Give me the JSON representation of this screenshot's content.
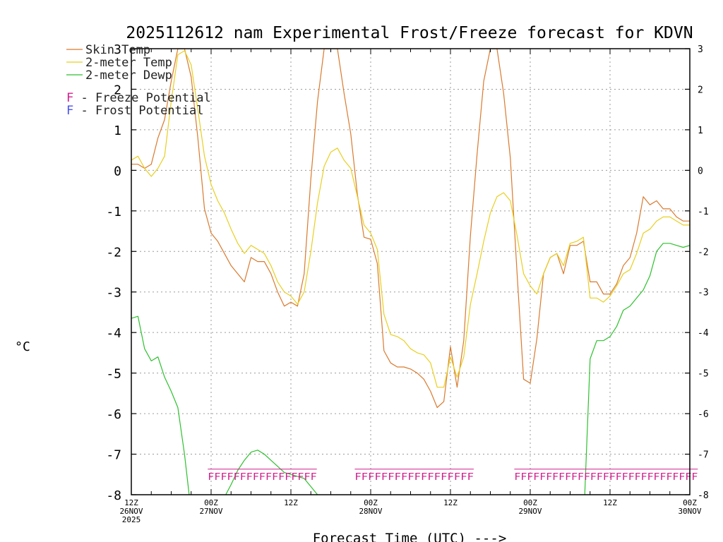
{
  "chart_data": {
    "type": "line",
    "title": "2025112612 nam Experimental Frost/Freeze forecast for KDVN",
    "xlabel": "Forecast Time (UTC) --->",
    "ylabel": "°C",
    "ylim": [
      -8,
      3
    ],
    "xlim": [
      0,
      84
    ],
    "y_ticks": [
      "-8",
      "-7",
      "-6",
      "-5",
      "-4",
      "-3",
      "-2",
      "-1",
      "0",
      "1",
      "2",
      "3"
    ],
    "x_ticks": [
      {
        "h": 0,
        "lines": [
          "12Z",
          "26NOV",
          "2025"
        ]
      },
      {
        "h": 12,
        "lines": [
          "00Z",
          "27NOV"
        ]
      },
      {
        "h": 24,
        "lines": [
          "12Z"
        ]
      },
      {
        "h": 36,
        "lines": [
          "00Z",
          "28NOV"
        ]
      },
      {
        "h": 48,
        "lines": [
          "12Z"
        ]
      },
      {
        "h": 60,
        "lines": [
          "00Z",
          "29NOV"
        ]
      },
      {
        "h": 72,
        "lines": [
          "12Z"
        ]
      },
      {
        "h": 84,
        "lines": [
          "00Z",
          "30NOV"
        ]
      }
    ],
    "grid": true,
    "legend": [
      {
        "label": "Skin Temp",
        "color": "#d97a2e"
      },
      {
        "label": "2-meter Temp",
        "color": "#e8cf1e"
      },
      {
        "label": "2-meter Dewp",
        "color": "#2ec02e"
      }
    ],
    "annotations": [
      {
        "letter": "F",
        "text": " - Freeze Potential",
        "color": "#d01e8c"
      },
      {
        "letter": "F",
        "text": " - Frost Potential",
        "color": "#4a52e8"
      }
    ],
    "series": [
      {
        "name": "Skin Temp",
        "color": "#d97a2e",
        "points": [
          [
            0,
            0.15
          ],
          [
            1,
            0.15
          ],
          [
            2,
            0.05
          ],
          [
            3,
            0.15
          ],
          [
            4,
            0.8
          ],
          [
            5,
            1.25
          ],
          [
            6,
            2.2
          ],
          [
            7,
            3.0
          ],
          [
            8,
            3.0
          ],
          [
            9,
            2.3
          ],
          [
            10,
            0.8
          ],
          [
            11,
            -0.95
          ],
          [
            12,
            -1.55
          ],
          [
            13,
            -1.75
          ],
          [
            14,
            -2.05
          ],
          [
            15,
            -2.35
          ],
          [
            16,
            -2.55
          ],
          [
            17,
            -2.75
          ],
          [
            18,
            -2.15
          ],
          [
            19,
            -2.25
          ],
          [
            20,
            -2.25
          ],
          [
            21,
            -2.55
          ],
          [
            22,
            -3.0
          ],
          [
            23,
            -3.35
          ],
          [
            24,
            -3.25
          ],
          [
            25,
            -3.35
          ],
          [
            26,
            -2.55
          ],
          [
            27,
            -0.2
          ],
          [
            28,
            1.7
          ],
          [
            29,
            3.0
          ],
          [
            30,
            3.0
          ],
          [
            31,
            3.0
          ],
          [
            32,
            1.9
          ],
          [
            33,
            0.9
          ],
          [
            34,
            -0.6
          ],
          [
            35,
            -1.65
          ],
          [
            36,
            -1.7
          ],
          [
            37,
            -2.3
          ],
          [
            38,
            -4.45
          ],
          [
            39,
            -4.75
          ],
          [
            40,
            -4.85
          ],
          [
            41,
            -4.85
          ],
          [
            42,
            -4.9
          ],
          [
            43,
            -5.0
          ],
          [
            44,
            -5.15
          ],
          [
            45,
            -5.45
          ],
          [
            46,
            -5.85
          ],
          [
            47,
            -5.7
          ],
          [
            48,
            -4.35
          ],
          [
            49,
            -5.35
          ],
          [
            50,
            -4.2
          ],
          [
            51,
            -1.6
          ],
          [
            52,
            0.4
          ],
          [
            53,
            2.2
          ],
          [
            54,
            3.0
          ],
          [
            55,
            3.0
          ],
          [
            56,
            1.9
          ],
          [
            57,
            0.3
          ],
          [
            58,
            -2.5
          ],
          [
            59,
            -5.15
          ],
          [
            60,
            -5.25
          ],
          [
            61,
            -4.15
          ],
          [
            62,
            -2.55
          ],
          [
            63,
            -2.15
          ],
          [
            64,
            -2.05
          ],
          [
            65,
            -2.55
          ],
          [
            66,
            -1.85
          ],
          [
            67,
            -1.85
          ],
          [
            68,
            -1.75
          ],
          [
            69,
            -2.75
          ],
          [
            70,
            -2.75
          ],
          [
            71,
            -3.05
          ],
          [
            72,
            -3.05
          ],
          [
            73,
            -2.8
          ],
          [
            74,
            -2.35
          ],
          [
            75,
            -2.15
          ],
          [
            76,
            -1.55
          ],
          [
            77,
            -0.65
          ],
          [
            78,
            -0.85
          ],
          [
            79,
            -0.75
          ],
          [
            80,
            -0.95
          ],
          [
            81,
            -0.95
          ],
          [
            82,
            -1.15
          ],
          [
            83,
            -1.25
          ],
          [
            84,
            -1.25
          ]
        ]
      },
      {
        "name": "2-meter Temp",
        "color": "#e8cf1e",
        "points": [
          [
            0,
            0.25
          ],
          [
            1,
            0.35
          ],
          [
            2,
            0.05
          ],
          [
            3,
            -0.15
          ],
          [
            4,
            0.05
          ],
          [
            5,
            0.35
          ],
          [
            6,
            1.7
          ],
          [
            7,
            2.85
          ],
          [
            8,
            2.95
          ],
          [
            9,
            2.6
          ],
          [
            10,
            1.5
          ],
          [
            11,
            0.35
          ],
          [
            12,
            -0.35
          ],
          [
            13,
            -0.75
          ],
          [
            14,
            -1.05
          ],
          [
            15,
            -1.45
          ],
          [
            16,
            -1.8
          ],
          [
            17,
            -2.05
          ],
          [
            18,
            -1.85
          ],
          [
            19,
            -1.95
          ],
          [
            20,
            -2.05
          ],
          [
            21,
            -2.35
          ],
          [
            22,
            -2.75
          ],
          [
            23,
            -3.0
          ],
          [
            24,
            -3.1
          ],
          [
            25,
            -3.3
          ],
          [
            26,
            -3.0
          ],
          [
            27,
            -2.0
          ],
          [
            28,
            -0.8
          ],
          [
            29,
            0.1
          ],
          [
            30,
            0.45
          ],
          [
            31,
            0.55
          ],
          [
            32,
            0.25
          ],
          [
            33,
            0.05
          ],
          [
            34,
            -0.65
          ],
          [
            35,
            -1.35
          ],
          [
            36,
            -1.55
          ],
          [
            37,
            -1.95
          ],
          [
            38,
            -3.55
          ],
          [
            39,
            -4.05
          ],
          [
            40,
            -4.1
          ],
          [
            41,
            -4.2
          ],
          [
            42,
            -4.4
          ],
          [
            43,
            -4.5
          ],
          [
            44,
            -4.55
          ],
          [
            45,
            -4.75
          ],
          [
            46,
            -5.35
          ],
          [
            47,
            -5.35
          ],
          [
            48,
            -4.6
          ],
          [
            49,
            -5.1
          ],
          [
            50,
            -4.6
          ],
          [
            51,
            -3.3
          ],
          [
            52,
            -2.55
          ],
          [
            53,
            -1.75
          ],
          [
            54,
            -1.05
          ],
          [
            55,
            -0.65
          ],
          [
            56,
            -0.55
          ],
          [
            57,
            -0.75
          ],
          [
            58,
            -1.6
          ],
          [
            59,
            -2.55
          ],
          [
            60,
            -2.85
          ],
          [
            61,
            -3.05
          ],
          [
            62,
            -2.55
          ],
          [
            63,
            -2.15
          ],
          [
            64,
            -2.05
          ],
          [
            65,
            -2.35
          ],
          [
            66,
            -1.8
          ],
          [
            67,
            -1.75
          ],
          [
            68,
            -1.65
          ],
          [
            69,
            -3.15
          ],
          [
            70,
            -3.15
          ],
          [
            71,
            -3.25
          ],
          [
            72,
            -3.1
          ],
          [
            73,
            -2.85
          ],
          [
            74,
            -2.55
          ],
          [
            75,
            -2.45
          ],
          [
            76,
            -2.05
          ],
          [
            77,
            -1.55
          ],
          [
            78,
            -1.45
          ],
          [
            79,
            -1.25
          ],
          [
            80,
            -1.15
          ],
          [
            81,
            -1.15
          ],
          [
            82,
            -1.25
          ],
          [
            83,
            -1.35
          ],
          [
            84,
            -1.35
          ]
        ]
      },
      {
        "name": "2-meter Dewp",
        "color": "#2ec02e",
        "points": [
          [
            0,
            -3.65
          ],
          [
            1,
            -3.6
          ],
          [
            2,
            -4.4
          ],
          [
            3,
            -4.7
          ],
          [
            4,
            -4.6
          ],
          [
            5,
            -5.1
          ],
          [
            6,
            -5.45
          ],
          [
            7,
            -5.85
          ],
          [
            8,
            -7.0
          ],
          [
            8.7,
            -8.0
          ],
          [
            null,
            null
          ],
          [
            14.2,
            -8.0
          ],
          [
            15,
            -7.75
          ],
          [
            16,
            -7.4
          ],
          [
            17,
            -7.15
          ],
          [
            18,
            -6.95
          ],
          [
            19,
            -6.9
          ],
          [
            20,
            -7.0
          ],
          [
            21,
            -7.15
          ],
          [
            22,
            -7.3
          ],
          [
            23,
            -7.45
          ],
          [
            24,
            -7.5
          ],
          [
            25,
            -7.55
          ],
          [
            26,
            -7.6
          ],
          [
            27,
            -7.8
          ],
          [
            28,
            -8.0
          ],
          [
            null,
            null
          ],
          [
            68.2,
            -8.0
          ],
          [
            69,
            -4.65
          ],
          [
            70,
            -4.2
          ],
          [
            71,
            -4.2
          ],
          [
            72,
            -4.1
          ],
          [
            73,
            -3.85
          ],
          [
            74,
            -3.45
          ],
          [
            75,
            -3.35
          ],
          [
            76,
            -3.15
          ],
          [
            77,
            -2.95
          ],
          [
            78,
            -2.6
          ],
          [
            79,
            -2.0
          ],
          [
            80,
            -1.8
          ],
          [
            81,
            -1.8
          ],
          [
            82,
            -1.85
          ],
          [
            83,
            -1.9
          ],
          [
            84,
            -1.85
          ]
        ]
      }
    ],
    "flag_rows": [
      {
        "text": "FFFFFFFFFFFFFFFFF",
        "start": 11.5,
        "end": 27.9,
        "color": "#d01e8c"
      },
      {
        "text": "FFFFFFFFFFFFFFFFFF",
        "start": 33.6,
        "end": 51.5,
        "color": "#d01e8c"
      },
      {
        "text": "FFFFFFFFFFFFFFFFFFFFFFFFFFFFF",
        "start": 57.6,
        "end": 85.2,
        "color": "#d01e8c"
      }
    ]
  }
}
